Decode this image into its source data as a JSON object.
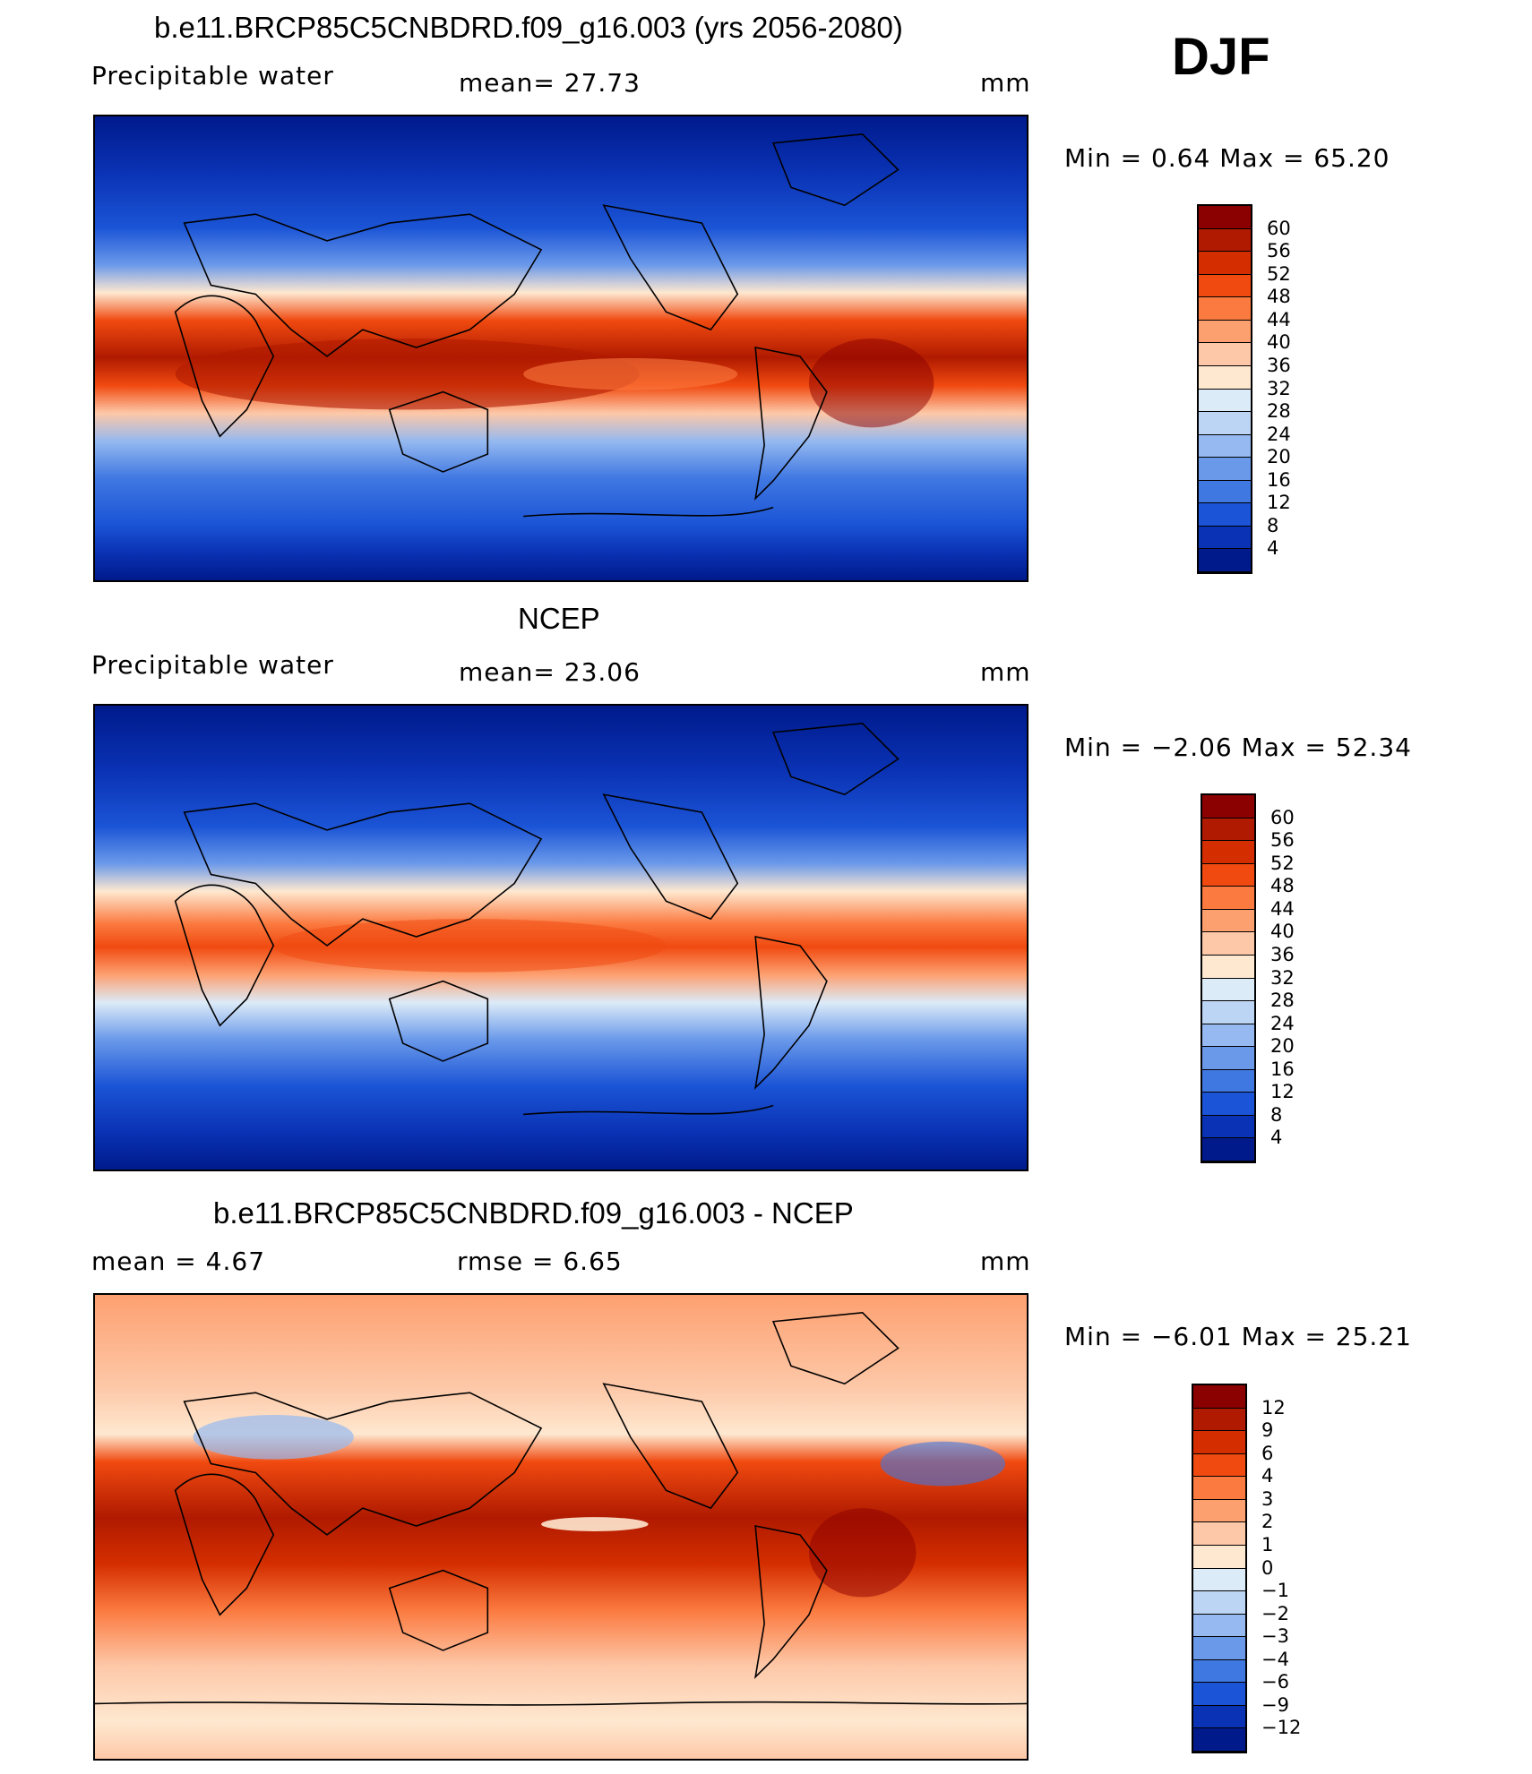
{
  "season": "DJF",
  "panels": [
    {
      "id": "model",
      "title": "b.e11.BRCP85C5CNBDRD.f09_g16.003 (yrs 2056-2080)",
      "left_label": "Precipitable  water",
      "center_label": "mean=   27.73",
      "units": "mm",
      "minmax": "Min  =     0.64  Max  =    65.20",
      "colorbar_labels": [
        "60",
        "56",
        "52",
        "48",
        "44",
        "40",
        "36",
        "32",
        "28",
        "24",
        "20",
        "16",
        "12",
        "8",
        "4"
      ],
      "colorbar_colors": [
        "#8b0000",
        "#b01a00",
        "#d42e00",
        "#f04a10",
        "#fb7a40",
        "#fda070",
        "#fdc8a8",
        "#fee8d0",
        "#dcebf8",
        "#bdd5f5",
        "#95b9f0",
        "#6a99ea",
        "#4078e2",
        "#1b54d6",
        "#0a32b4",
        "#001a8c"
      ]
    },
    {
      "id": "obs",
      "title": "NCEP",
      "left_label": "Precipitable  water",
      "center_label": "mean=   23.06",
      "units": "mm",
      "minmax": "Min  =   −2.06  Max  =    52.34",
      "colorbar_labels": [
        "60",
        "56",
        "52",
        "48",
        "44",
        "40",
        "36",
        "32",
        "28",
        "24",
        "20",
        "16",
        "12",
        "8",
        "4"
      ],
      "colorbar_colors": [
        "#8b0000",
        "#b01a00",
        "#d42e00",
        "#f04a10",
        "#fb7a40",
        "#fda070",
        "#fdc8a8",
        "#fee8d0",
        "#dcebf8",
        "#bdd5f5",
        "#95b9f0",
        "#6a99ea",
        "#4078e2",
        "#1b54d6",
        "#0a32b4",
        "#001a8c"
      ]
    },
    {
      "id": "diff",
      "title": "b.e11.BRCP85C5CNBDRD.f09_g16.003 - NCEP",
      "left_label": "mean  =      4.67",
      "center_label": "rmse  =      6.65",
      "units": "mm",
      "minmax": "Min  =   −6.01  Max  =    25.21",
      "colorbar_labels": [
        "12",
        "9",
        "6",
        "4",
        "3",
        "2",
        "1",
        "0",
        "−1",
        "−2",
        "−3",
        "−4",
        "−6",
        "−9",
        "−12"
      ],
      "colorbar_colors": [
        "#8b0000",
        "#b01a00",
        "#d42e00",
        "#f04a10",
        "#fb7a40",
        "#fda070",
        "#fdc8a8",
        "#fee8d0",
        "#dcebf8",
        "#bdd5f5",
        "#95b9f0",
        "#6a99ea",
        "#4078e2",
        "#1b54d6",
        "#0a32b4",
        "#001a8c"
      ]
    }
  ]
}
